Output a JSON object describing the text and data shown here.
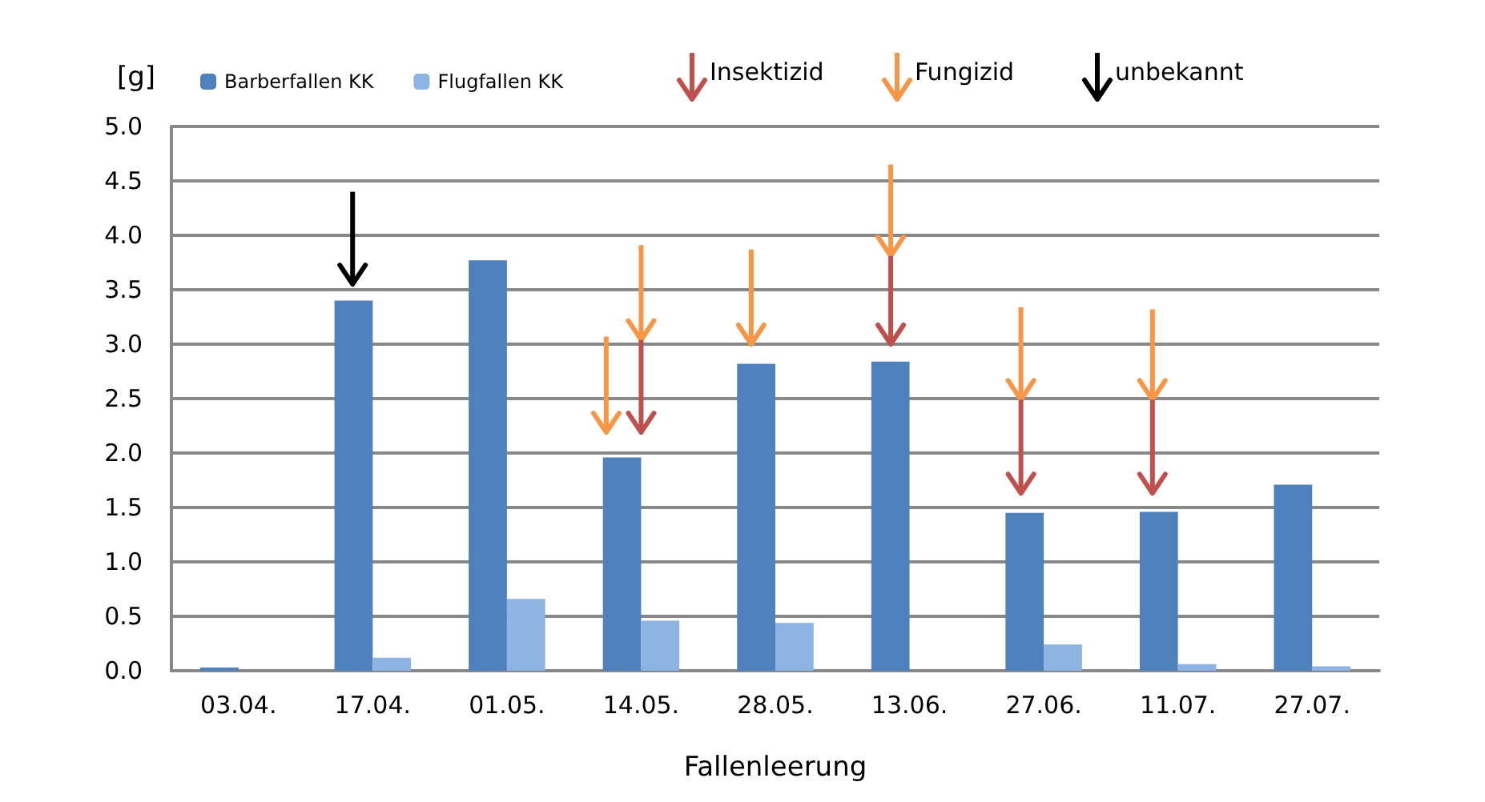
{
  "chart_data": {
    "type": "bar",
    "ylabel": "[g]",
    "xlabel": "Fallenleerung",
    "categories": [
      "03.04.",
      "17.04.",
      "01.05.",
      "14.05.",
      "28.05.",
      "13.06.",
      "27.06.",
      "11.07.",
      "27.07."
    ],
    "series": [
      {
        "name": "Barberfallen KK",
        "color": "#4f81bd",
        "values": [
          0.03,
          3.4,
          3.77,
          1.96,
          2.82,
          2.84,
          1.45,
          1.46,
          1.71
        ]
      },
      {
        "name": "Flugfallen KK",
        "color": "#8eb4e3",
        "values": [
          0,
          0.12,
          0.66,
          0.46,
          0.44,
          0,
          0.24,
          0.06,
          0.04
        ]
      }
    ],
    "ylim": [
      0,
      5
    ],
    "yticks": [
      {
        "value": 0,
        "label": "0.0"
      },
      {
        "value": 0.5,
        "label": "0.5"
      },
      {
        "value": 1,
        "label": "1.0"
      },
      {
        "value": 1.5,
        "label": "1.5"
      },
      {
        "value": 2,
        "label": "2.0"
      },
      {
        "value": 2.5,
        "label": "2.5"
      },
      {
        "value": 3,
        "label": "3.0"
      },
      {
        "value": 3.5,
        "label": "3.5"
      },
      {
        "value": 4,
        "label": "4.0"
      },
      {
        "value": 4.5,
        "label": "4.5"
      },
      {
        "value": 5,
        "label": "5.0"
      }
    ],
    "annotations": [
      "Insektizid",
      "Fungizid",
      "unbekannt"
    ],
    "grid": "y",
    "legend": "top"
  }
}
